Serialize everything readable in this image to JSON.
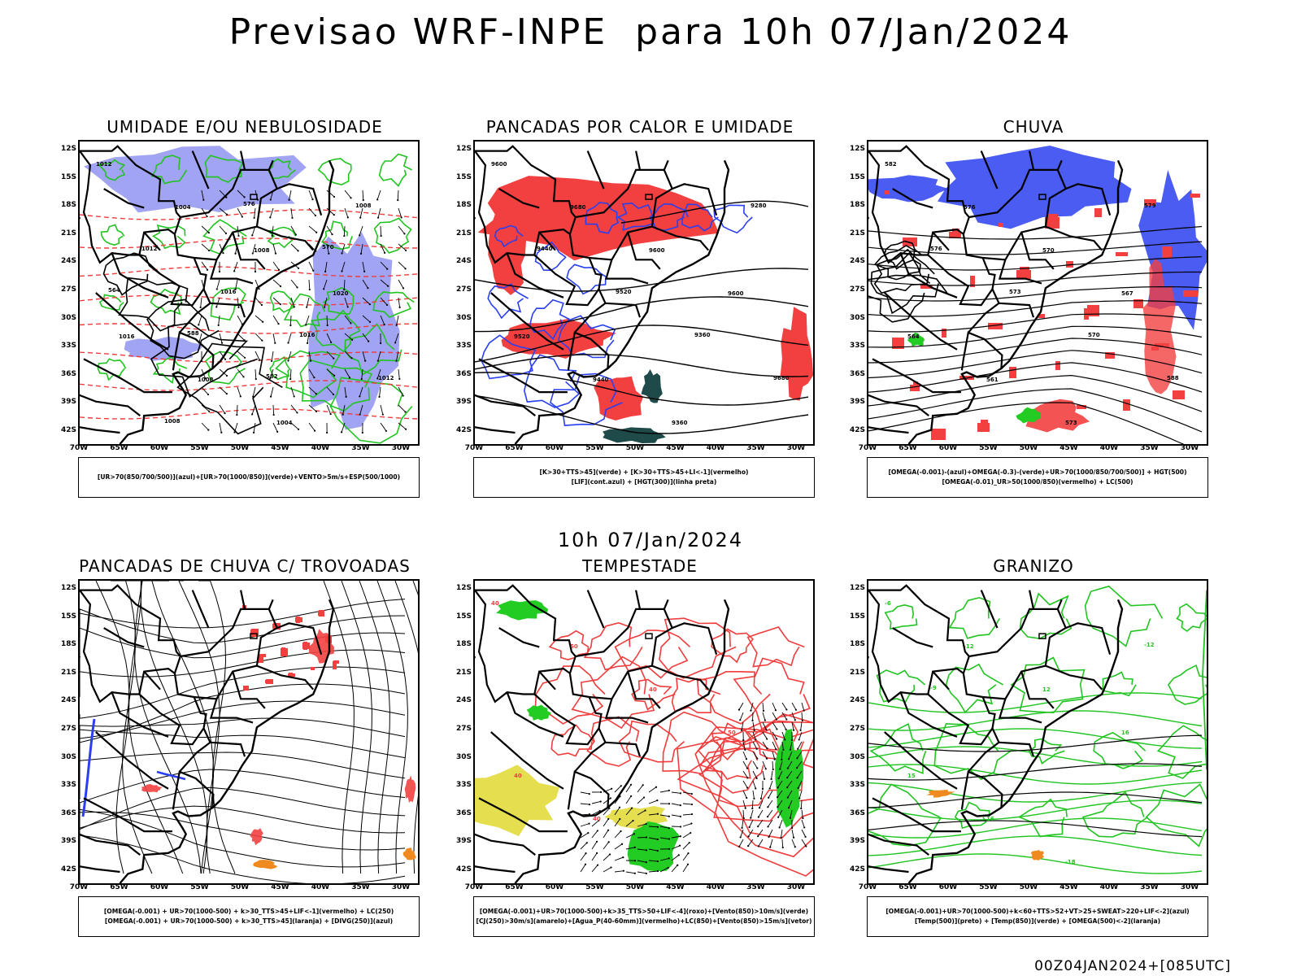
{
  "main_title": "Previsao WRF-INPE  para 10h 07/Jan/2024",
  "mid_title": "10h 07/Jan/2024",
  "footer_stamp": "00Z04JAN2024+[085UTC]",
  "lat_ticks": [
    "12S",
    "15S",
    "18S",
    "21S",
    "24S",
    "27S",
    "30S",
    "33S",
    "36S",
    "39S",
    "42S"
  ],
  "lon_ticks": [
    "70W",
    "65W",
    "60W",
    "55W",
    "50W",
    "45W",
    "40W",
    "35W",
    "30W"
  ],
  "colors": {
    "blue_fill": "#8a8cf0",
    "green_line": "#22c422",
    "red_line": "#f03c3c",
    "red_fill": "#f24040",
    "dark_fill": "#1f4a4a",
    "yellow_fill": "#e0d830",
    "orange_fill": "#ee8a20",
    "blue_line": "#2a40f0",
    "green_fill": "#22cc22"
  },
  "panels": [
    {
      "id": "umidade",
      "title": "UMIDADE E/OU NEBULOSIDADE",
      "legend": [
        "[UR>70(850/700/500)](azul)+[UR>70(1000/850)](verde)+VENTO>5m/s+ESP(500/1000)"
      ],
      "contour_labels": [
        "1012",
        "1004",
        "1008",
        "1020",
        "1016",
        "1008",
        "1004",
        "1008",
        "1012",
        "1016",
        "1016",
        "1012",
        "1008",
        "576",
        "570",
        "564",
        "588",
        "582"
      ]
    },
    {
      "id": "pancadas_calor",
      "title": "PANCADAS POR CALOR E UMIDADE",
      "legend": [
        "[K>30+TTS>45](verde) + [K>30+TTS>45+LI<-1](vermelho)",
        "[LIF](cont.azul) + [HGT(300)](linha preta)"
      ],
      "contour_labels": [
        "9600",
        "9680",
        "9600",
        "9600",
        "9520",
        "9440",
        "9360",
        "9280",
        "9440",
        "9520",
        "9360",
        "9680"
      ]
    },
    {
      "id": "chuva",
      "title": "CHUVA",
      "legend": [
        "[OMEGA(-0.001)-(azul)+OMEGA(-0.3)-(verde)+UR>70(1000/850/700/500)] + HGT(500)",
        "[OMEGA(-0.01)_UR>50(1000/850)(vermelho) + LC(500)"
      ],
      "contour_labels": [
        "582",
        "576",
        "570",
        "567",
        "564",
        "561",
        "573",
        "579",
        "576",
        "573",
        "570",
        "588"
      ]
    },
    {
      "id": "pancadas_trovoadas",
      "title": "PANCADAS DE CHUVA C/ TROVOADAS",
      "legend": [
        "[OMEGA(-0.001) + UR>70(1000-500) + k>30_TTS>45+LIF<-1](vermelho) + LC(250)",
        "[OMEGA(-0.001) + UR>70(1000-500) + k>30_TTS>45](laranja) + [DIVG(250)](azul)"
      ],
      "contour_labels": []
    },
    {
      "id": "tempestade",
      "title": "TEMPESTADE",
      "legend": [
        "[OMEGA(-0.001)+UR>70(1000-500)+k>35_TTS>50+LIF<-4](roxo)+[Vento(850)>10m/s](verde)",
        "[CJ(250)>30m/s](amarelo)+[Agua_P(40-60mm)](vermelho)+LC(850)+[Vento(850)>15m/s](vetor)"
      ],
      "contour_labels": [
        "40",
        "50",
        "40",
        "50",
        "40",
        "40"
      ]
    },
    {
      "id": "granizo",
      "title": "GRANIZO",
      "legend": [
        "[OMEGA(-0.001)+UR>70(1000-500)+k<60+TTS>52+VT>25+SWEAT>220+LIF<-2](azul)",
        "[Temp(500)](preto) + [Temp(850)](verde) + [OMEGA(500)<-2](laranja)"
      ],
      "contour_labels": [
        "-6",
        "-12",
        "12",
        "16",
        "15",
        "16",
        "-18",
        "-12",
        "-9"
      ]
    }
  ]
}
